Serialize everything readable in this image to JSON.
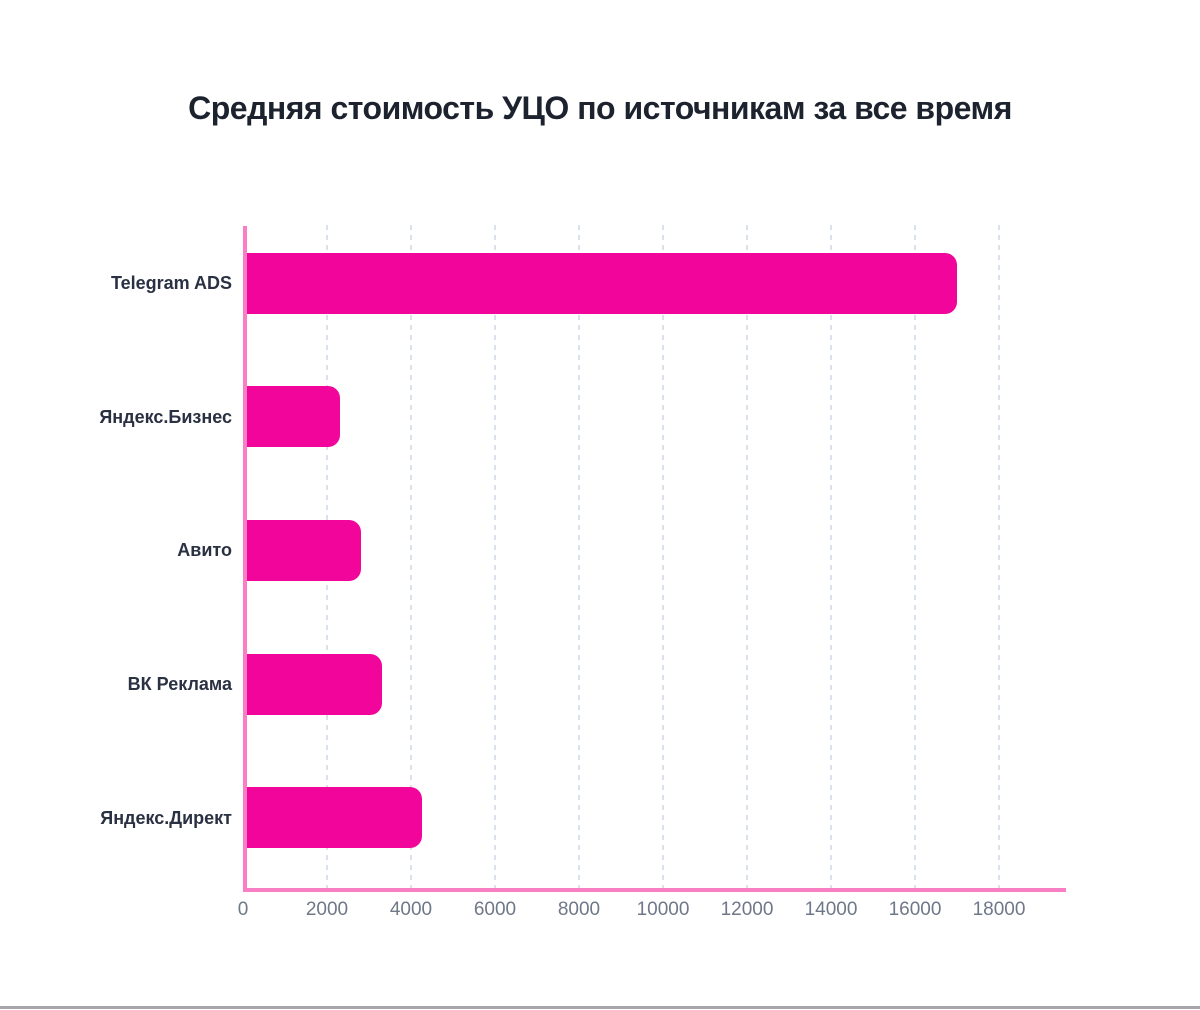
{
  "page": {
    "background_color": "#ffffff",
    "bottom_edge_color": "#A6A6AC"
  },
  "chart_data": {
    "type": "bar",
    "orientation": "horizontal",
    "title": "Средняя стоимость УЦО по источникам за все время",
    "categories": [
      "Telegram ADS",
      "Яндекс.Бизнес",
      "Авито",
      "ВК Реклама",
      "Яндекс.Директ"
    ],
    "values": [
      17000,
      2300,
      2800,
      3300,
      4250
    ],
    "x_ticks": [
      0,
      2000,
      4000,
      6000,
      8000,
      10000,
      12000,
      14000,
      16000,
      18000
    ],
    "xlim": [
      0,
      19600
    ],
    "xlabel": "",
    "ylabel": "",
    "legend": "none",
    "grid": "vertical-dashed",
    "colors": {
      "bar": "#F2059A",
      "axis": "#F97FC5",
      "gridline": "#D9E2EC",
      "tick_label": "#6F7888",
      "category_label": "#2A3142",
      "title": "#1C222E"
    }
  }
}
